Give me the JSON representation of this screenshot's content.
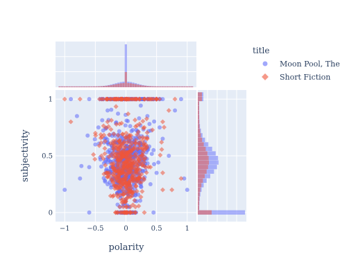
{
  "chart_data": {
    "type": "scatter",
    "xlabel": "polarity",
    "ylabel": "subjectivity",
    "xlim": [
      -1.15,
      1.15
    ],
    "ylim": [
      -0.08,
      1.08
    ],
    "x_ticks": [
      -1,
      -0.5,
      0,
      0.5,
      1
    ],
    "x_tick_labels": [
      "−1",
      "−0.5",
      "0",
      "0.5",
      "1"
    ],
    "y_ticks": [
      0,
      0.5,
      1
    ],
    "y_tick_labels": [
      "0",
      "0.5",
      "1"
    ],
    "grid": true,
    "marginals": {
      "top": "histogram",
      "right": "histogram"
    },
    "legend": {
      "title": "title",
      "placement": "right",
      "entries": [
        {
          "name": "Moon Pool, The",
          "color": "#636efa",
          "marker": "circle"
        },
        {
          "name": "Short Fiction",
          "color": "#ef553b",
          "marker": "diamond"
        }
      ]
    },
    "series": [
      {
        "name": "Moon Pool, The",
        "color": "#636efa",
        "marker": "circle",
        "approx_points": [
          [
            -0.9,
            1
          ],
          [
            -0.6,
            1
          ],
          [
            -0.4,
            1
          ],
          [
            0.3,
            1
          ],
          [
            0.6,
            1
          ],
          [
            0.9,
            1
          ],
          [
            -0.8,
            0.85
          ],
          [
            -0.45,
            0.75
          ],
          [
            -0.3,
            0.9
          ],
          [
            0.35,
            0.85
          ],
          [
            0.55,
            0.75
          ],
          [
            0.8,
            0.9
          ],
          [
            -0.5,
            0.6
          ],
          [
            -0.35,
            0.65
          ],
          [
            -0.2,
            0.55
          ],
          [
            0.25,
            0.6
          ],
          [
            0.45,
            0.55
          ],
          [
            0.6,
            0.65
          ],
          [
            -0.6,
            0.4
          ],
          [
            -0.25,
            0.45
          ],
          [
            -0.1,
            0.35
          ],
          [
            0.1,
            0.4
          ],
          [
            0.3,
            0.45
          ],
          [
            0.5,
            0.35
          ],
          [
            -1,
            0.2
          ],
          [
            -0.3,
            0.25
          ],
          [
            -0.1,
            0.2
          ],
          [
            0.15,
            0.15
          ],
          [
            0.4,
            0.25
          ],
          [
            1,
            0.2
          ],
          [
            -0.6,
            0
          ],
          [
            0,
            0
          ],
          [
            0.45,
            0
          ],
          [
            0.95,
            0.3
          ],
          [
            -0.75,
            0.3
          ],
          [
            0.7,
            0.5
          ]
        ],
        "marginal_peak_x": 0,
        "marginal_peak_y": 0
      },
      {
        "name": "Short Fiction",
        "color": "#ef553b",
        "marker": "diamond",
        "approx_points": [
          [
            -1,
            1
          ],
          [
            -0.75,
            1
          ],
          [
            -0.2,
            1
          ],
          [
            0.1,
            1
          ],
          [
            0.5,
            1
          ],
          [
            0.8,
            1
          ],
          [
            -0.9,
            0.8
          ],
          [
            -0.5,
            0.7
          ],
          [
            -0.3,
            0.8
          ],
          [
            0.3,
            0.75
          ],
          [
            0.6,
            0.8
          ],
          [
            0.7,
            0.9
          ],
          [
            -0.4,
            0.5
          ],
          [
            -0.2,
            0.6
          ],
          [
            -0.05,
            0.5
          ],
          [
            0.1,
            0.55
          ],
          [
            0.25,
            0.5
          ],
          [
            0.6,
            0.35
          ],
          [
            -0.3,
            0.35
          ],
          [
            -0.1,
            0.3
          ],
          [
            0.05,
            0.35
          ],
          [
            0.2,
            0.3
          ],
          [
            0.6,
            0.2
          ],
          [
            0.75,
            0.2
          ],
          [
            -0.2,
            0.15
          ],
          [
            0,
            0.1
          ],
          [
            0.3,
            0
          ],
          [
            0.1,
            0.15
          ],
          [
            0.4,
            0.4
          ],
          [
            0.9,
            0.3
          ]
        ],
        "marginal_peak_x": 0,
        "marginal_peak_y": 0
      }
    ]
  }
}
